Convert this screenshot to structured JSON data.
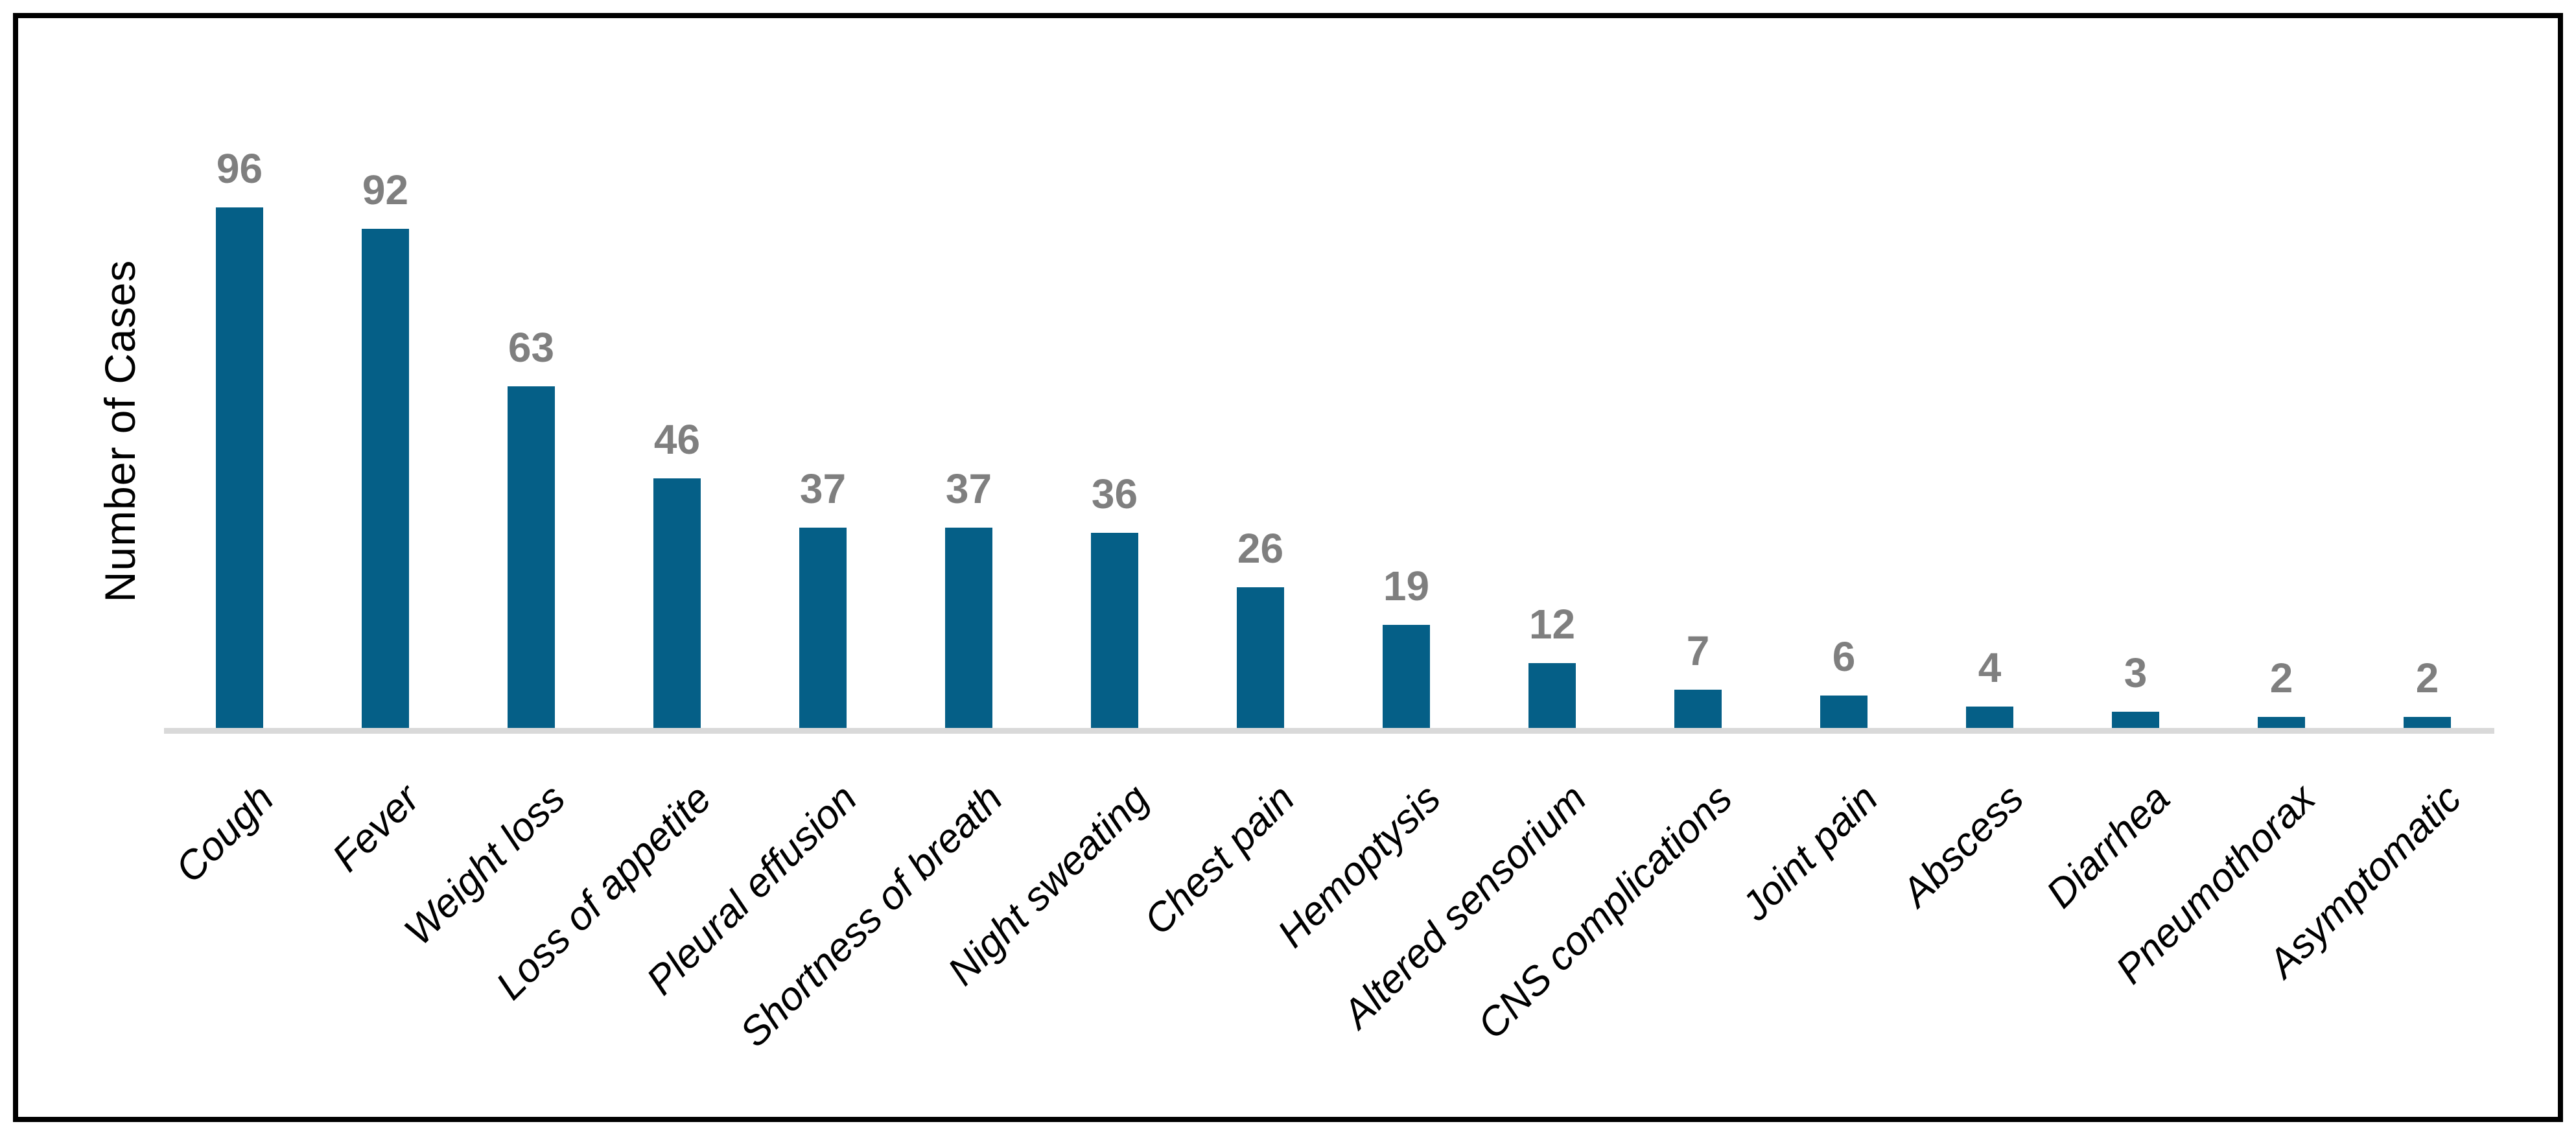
{
  "chart_data": {
    "type": "bar",
    "title": "",
    "xlabel": "",
    "ylabel": "Number of Cases",
    "categories": [
      "Cough",
      "Fever",
      "Weight loss",
      "Loss of appetite",
      "Pleural effusion",
      "Shortness of breath",
      "Night sweating",
      "Chest pain",
      "Hemoptysis",
      "Altered sensorium",
      "CNS complications",
      "Joint pain",
      "Abscess",
      "Diarrhea",
      "Pneumothorax",
      "Asymptomatic"
    ],
    "values": [
      96,
      92,
      63,
      46,
      37,
      37,
      36,
      26,
      19,
      12,
      7,
      6,
      4,
      3,
      2,
      2
    ],
    "data_labels_shown": true,
    "legend": "none",
    "grid": false,
    "y_tick_labels_shown": false,
    "x_label_rotation_deg": -45,
    "ylim": [
      0,
      100
    ],
    "colors": {
      "bar": "#055F87",
      "value_label": "#7F7F7F",
      "axis_line": "#D9D9D9",
      "category_label": "#000000",
      "frame_border": "#000000",
      "background": "#FFFFFF"
    }
  }
}
